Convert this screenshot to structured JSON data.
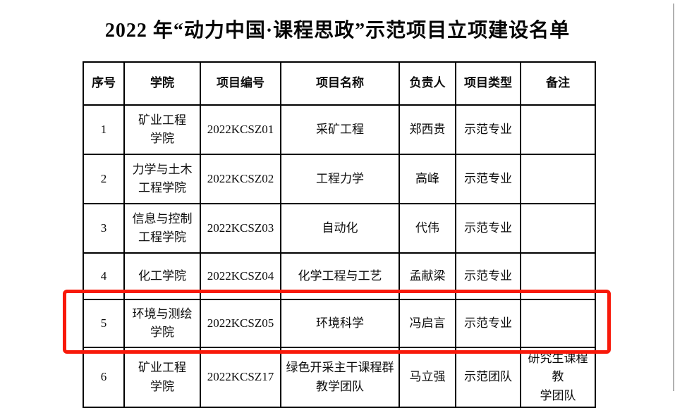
{
  "page": {
    "title": "2022 年“动力中国·课程思政”示范项目立项建设名单"
  },
  "table": {
    "headers": [
      "序号",
      "学院",
      "项目编号",
      "项目名称",
      "负责人",
      "项目类型",
      "备注"
    ],
    "rows": [
      {
        "no": "1",
        "college": "矿业工程\n学院",
        "code": "2022KCSZ01",
        "name": "采矿工程",
        "leader": "郑西贵",
        "type": "示范专业",
        "remark": ""
      },
      {
        "no": "2",
        "college": "力学与土木\n工程学院",
        "code": "2022KCSZ02",
        "name": "工程力学",
        "leader": "高峰",
        "type": "示范专业",
        "remark": ""
      },
      {
        "no": "3",
        "college": "信息与控制\n工程学院",
        "code": "2022KCSZ03",
        "name": "自动化",
        "leader": "代伟",
        "type": "示范专业",
        "remark": ""
      },
      {
        "no": "4",
        "college": "化工学院",
        "code": "2022KCSZ04",
        "name": "化学工程与工艺",
        "leader": "孟献梁",
        "type": "示范专业",
        "remark": ""
      },
      {
        "no": "5",
        "college": "环境与测绘\n学院",
        "code": "2022KCSZ05",
        "name": "环境科学",
        "leader": "冯启言",
        "type": "示范专业",
        "remark": ""
      },
      {
        "no": "6",
        "college": "矿业工程\n学院",
        "code": "2022KCSZ17",
        "name": "绿色开采主干课程群\n教学团队",
        "leader": "马立强",
        "type": "示范团队",
        "remark": "研究生课程教\n学团队"
      }
    ]
  },
  "annotation": {
    "highlighted_row_no": "5",
    "highlight_color": "#f8190a"
  },
  "page_edge": {
    "color": "#b1b1b1"
  }
}
